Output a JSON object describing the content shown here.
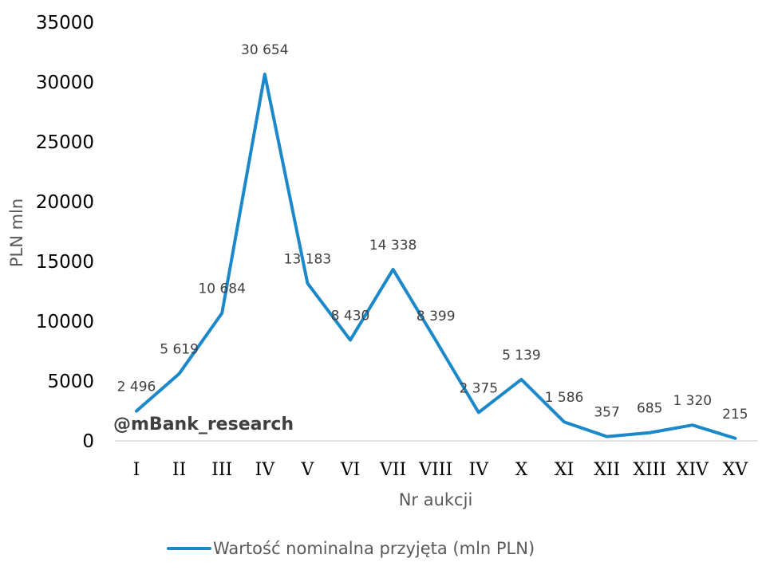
{
  "chart_data": {
    "type": "line",
    "categories": [
      "I",
      "II",
      "III",
      "IV",
      "V",
      "VI",
      "VII",
      "VIII",
      "IV",
      "X",
      "XI",
      "XII",
      "XIII",
      "XIV",
      "XV"
    ],
    "series": [
      {
        "name": "Wartość nominalna przyjęta (mln PLN)",
        "values": [
          2496,
          5619,
          10684,
          30654,
          13183,
          8430,
          14338,
          8399,
          2375,
          5139,
          1586,
          357,
          685,
          1320,
          215
        ],
        "labels": [
          "2 496",
          "5 619",
          "10 684",
          "30 654",
          "13 183",
          "8 430",
          "14 338",
          "8 399",
          "2 375",
          "5 139",
          "1 586",
          "357",
          "685",
          "1 320",
          "215"
        ]
      }
    ],
    "xlabel": "Nr aukcji",
    "ylabel": "PLN mln",
    "ylim": [
      0,
      35000
    ],
    "yticks": [
      "0",
      "5000",
      "10000",
      "15000",
      "20000",
      "25000",
      "30000",
      "35000"
    ],
    "grid": false,
    "legend_position": "bottom",
    "colors": {
      "line": "#1A88C9",
      "axis": "#D9D9D9"
    }
  },
  "watermark": "@mBank_research"
}
